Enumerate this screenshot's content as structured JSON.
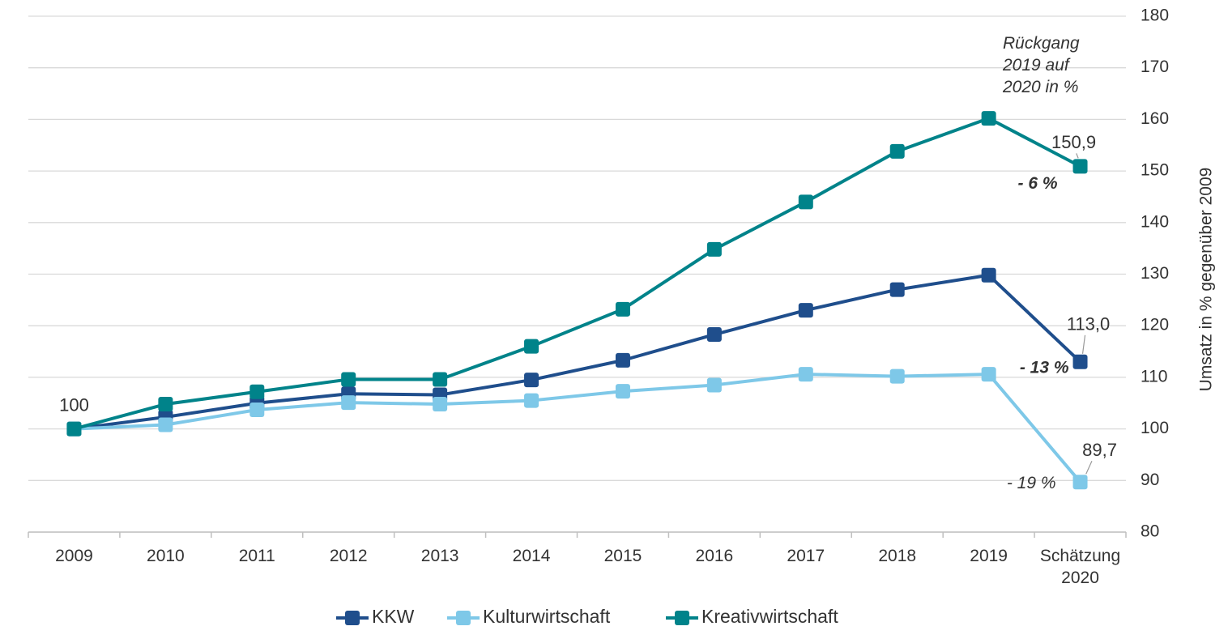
{
  "chart_data": {
    "type": "line",
    "categories": [
      "2009",
      "2010",
      "2011",
      "2012",
      "2013",
      "2014",
      "2015",
      "2016",
      "2017",
      "2018",
      "2019",
      "Schätzung 2020"
    ],
    "series": [
      {
        "name": "KKW",
        "color": "#1f4e8c",
        "values": [
          100,
          102.3,
          105,
          106.8,
          106.6,
          109.5,
          113.3,
          118.3,
          123,
          127,
          129.8,
          113.0
        ],
        "value_labels": [
          null,
          null,
          null,
          null,
          null,
          null,
          null,
          null,
          null,
          null,
          null,
          "113,0"
        ],
        "change_label": "- 13 %"
      },
      {
        "name": "Kulturwirtschaft",
        "color": "#7ec8e8",
        "values": [
          100,
          100.8,
          103.7,
          105.1,
          104.8,
          105.5,
          107.3,
          108.5,
          110.6,
          110.2,
          110.6,
          89.7
        ],
        "value_labels": [
          null,
          null,
          null,
          null,
          null,
          null,
          null,
          null,
          null,
          null,
          null,
          "89,7"
        ],
        "change_label": "- 19 %"
      },
      {
        "name": "Kreativwirtschaft",
        "color": "#00838a",
        "values": [
          100,
          104.8,
          107.2,
          109.6,
          109.6,
          116,
          123.2,
          134.8,
          144,
          153.8,
          160.2,
          150.9
        ],
        "value_labels": [
          "100",
          null,
          null,
          null,
          null,
          null,
          null,
          null,
          null,
          null,
          null,
          "150,9"
        ],
        "change_label": "- 6 %"
      }
    ],
    "ylim": [
      80,
      180
    ],
    "yticks": [
      80,
      90,
      100,
      110,
      120,
      130,
      140,
      150,
      160,
      170,
      180
    ],
    "y_axis_label": "Umsatz in % gegenüber 2009",
    "annotation": "Rückgang 2019 auf 2020 in %",
    "grid": true,
    "legend": "bottom"
  }
}
